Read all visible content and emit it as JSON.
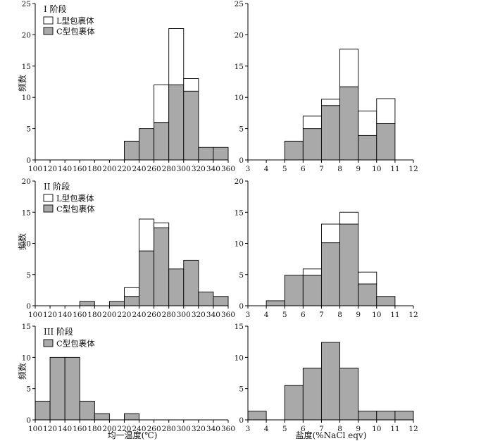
{
  "figure": {
    "xlabel_temperature": "均一温度(℃)",
    "xlabel_salinity": "盐度(%NaCl eqv)",
    "ylabel": "频数"
  },
  "legend": {
    "l_type": "L型包裹体",
    "c_type": "C型包裹体"
  },
  "colors": {
    "c_type_fill": "#a9a9a9",
    "l_type_fill": "#ffffff",
    "stroke": "#000000"
  },
  "chart_data": [
    {
      "type": "bar",
      "stage": "I 阶段",
      "quantity": "temperature",
      "xlim": [
        100,
        360
      ],
      "xticks": [
        100,
        120,
        140,
        160,
        180,
        200,
        220,
        240,
        260,
        280,
        300,
        320,
        340,
        360
      ],
      "ylim": [
        0,
        25
      ],
      "yticks": [
        0,
        5,
        10,
        15,
        20,
        25
      ],
      "bins": [
        [
          220,
          240
        ],
        [
          240,
          260
        ],
        [
          260,
          280
        ],
        [
          280,
          300
        ],
        [
          300,
          320
        ],
        [
          320,
          340
        ],
        [
          340,
          360
        ]
      ],
      "series": [
        {
          "name": "C型包裹体",
          "values": [
            3,
            5,
            6,
            12,
            11,
            2,
            2
          ]
        },
        {
          "name": "L型包裹体",
          "values": [
            0,
            0,
            6,
            9,
            2,
            0,
            0
          ]
        }
      ],
      "legend": "top-left"
    },
    {
      "type": "bar",
      "stage": "",
      "quantity": "salinity",
      "xlim": [
        3,
        12
      ],
      "xticks": [
        3,
        4,
        5,
        6,
        7,
        8,
        9,
        10,
        11,
        12
      ],
      "ylim": [
        0,
        25
      ],
      "yticks": [
        0,
        5,
        10,
        15,
        20,
        25
      ],
      "bins": [
        [
          5,
          6
        ],
        [
          6,
          7
        ],
        [
          7,
          8
        ],
        [
          8,
          9
        ],
        [
          9,
          10
        ],
        [
          10,
          11
        ]
      ],
      "series": [
        {
          "name": "C型包裹体",
          "values": [
            3,
            5,
            8.7,
            11.7,
            3.9,
            5.8
          ]
        },
        {
          "name": "L型包裹体",
          "values": [
            0,
            2,
            1,
            6,
            3.9,
            4
          ]
        }
      ]
    },
    {
      "type": "bar",
      "stage": "II 阶段",
      "quantity": "temperature",
      "xlim": [
        100,
        360
      ],
      "xticks": [
        100,
        120,
        140,
        160,
        180,
        200,
        220,
        240,
        260,
        280,
        300,
        320,
        340,
        360
      ],
      "ylim": [
        0,
        20
      ],
      "yticks": [
        0,
        5,
        10,
        15,
        20
      ],
      "bins": [
        [
          160,
          180
        ],
        [
          200,
          220
        ],
        [
          220,
          240
        ],
        [
          240,
          260
        ],
        [
          260,
          280
        ],
        [
          280,
          300
        ],
        [
          300,
          320
        ],
        [
          320,
          340
        ],
        [
          340,
          360
        ]
      ],
      "series": [
        {
          "name": "C型包裹体",
          "values": [
            0.7,
            0.7,
            1.5,
            8.8,
            12.5,
            5.9,
            7.3,
            2.2,
            1.5
          ]
        },
        {
          "name": "L型包裹体",
          "values": [
            0,
            0,
            1.4,
            5.1,
            0.8,
            0,
            0,
            0,
            0
          ]
        }
      ],
      "legend": "top-left"
    },
    {
      "type": "bar",
      "stage": "",
      "quantity": "salinity",
      "xlim": [
        3,
        12
      ],
      "xticks": [
        3,
        4,
        5,
        6,
        7,
        8,
        9,
        10,
        11,
        12
      ],
      "ylim": [
        0,
        20
      ],
      "yticks": [
        0,
        5,
        10,
        15,
        20
      ],
      "bins": [
        [
          4,
          5
        ],
        [
          5,
          6
        ],
        [
          6,
          7
        ],
        [
          7,
          8
        ],
        [
          8,
          9
        ],
        [
          9,
          10
        ],
        [
          10,
          11
        ]
      ],
      "series": [
        {
          "name": "C型包裹体",
          "values": [
            0.8,
            4.9,
            4.9,
            10.1,
            13.1,
            3.5,
            1.5
          ]
        },
        {
          "name": "L型包裹体",
          "values": [
            0,
            0,
            1,
            3,
            1.9,
            1.9,
            0
          ]
        }
      ]
    },
    {
      "type": "bar",
      "stage": "III 阶段",
      "quantity": "temperature",
      "xlim": [
        100,
        360
      ],
      "xticks": [
        100,
        120,
        140,
        160,
        180,
        200,
        220,
        240,
        260,
        280,
        300,
        320,
        340,
        360
      ],
      "ylim": [
        0,
        15
      ],
      "yticks": [
        0,
        5,
        10,
        15
      ],
      "bins": [
        [
          100,
          120
        ],
        [
          120,
          140
        ],
        [
          140,
          160
        ],
        [
          160,
          180
        ],
        [
          180,
          200
        ],
        [
          220,
          240
        ]
      ],
      "series": [
        {
          "name": "C型包裹体",
          "values": [
            3,
            10,
            10,
            3,
            1,
            1
          ]
        }
      ],
      "legend": "top-left"
    },
    {
      "type": "bar",
      "stage": "",
      "quantity": "salinity",
      "xlim": [
        3,
        12
      ],
      "xticks": [
        3,
        4,
        5,
        6,
        7,
        8,
        9,
        10,
        11,
        12
      ],
      "ylim": [
        0,
        15
      ],
      "yticks": [
        0,
        5,
        10,
        15
      ],
      "bins": [
        [
          3,
          4
        ],
        [
          5,
          6
        ],
        [
          6,
          7
        ],
        [
          7,
          8
        ],
        [
          8,
          9
        ],
        [
          9,
          10
        ],
        [
          10,
          11
        ],
        [
          11,
          12
        ]
      ],
      "series": [
        {
          "name": "C型包裹体",
          "values": [
            1.4,
            5.5,
            8.3,
            12.4,
            8.3,
            1.4,
            1.4,
            1.4
          ]
        }
      ]
    }
  ]
}
